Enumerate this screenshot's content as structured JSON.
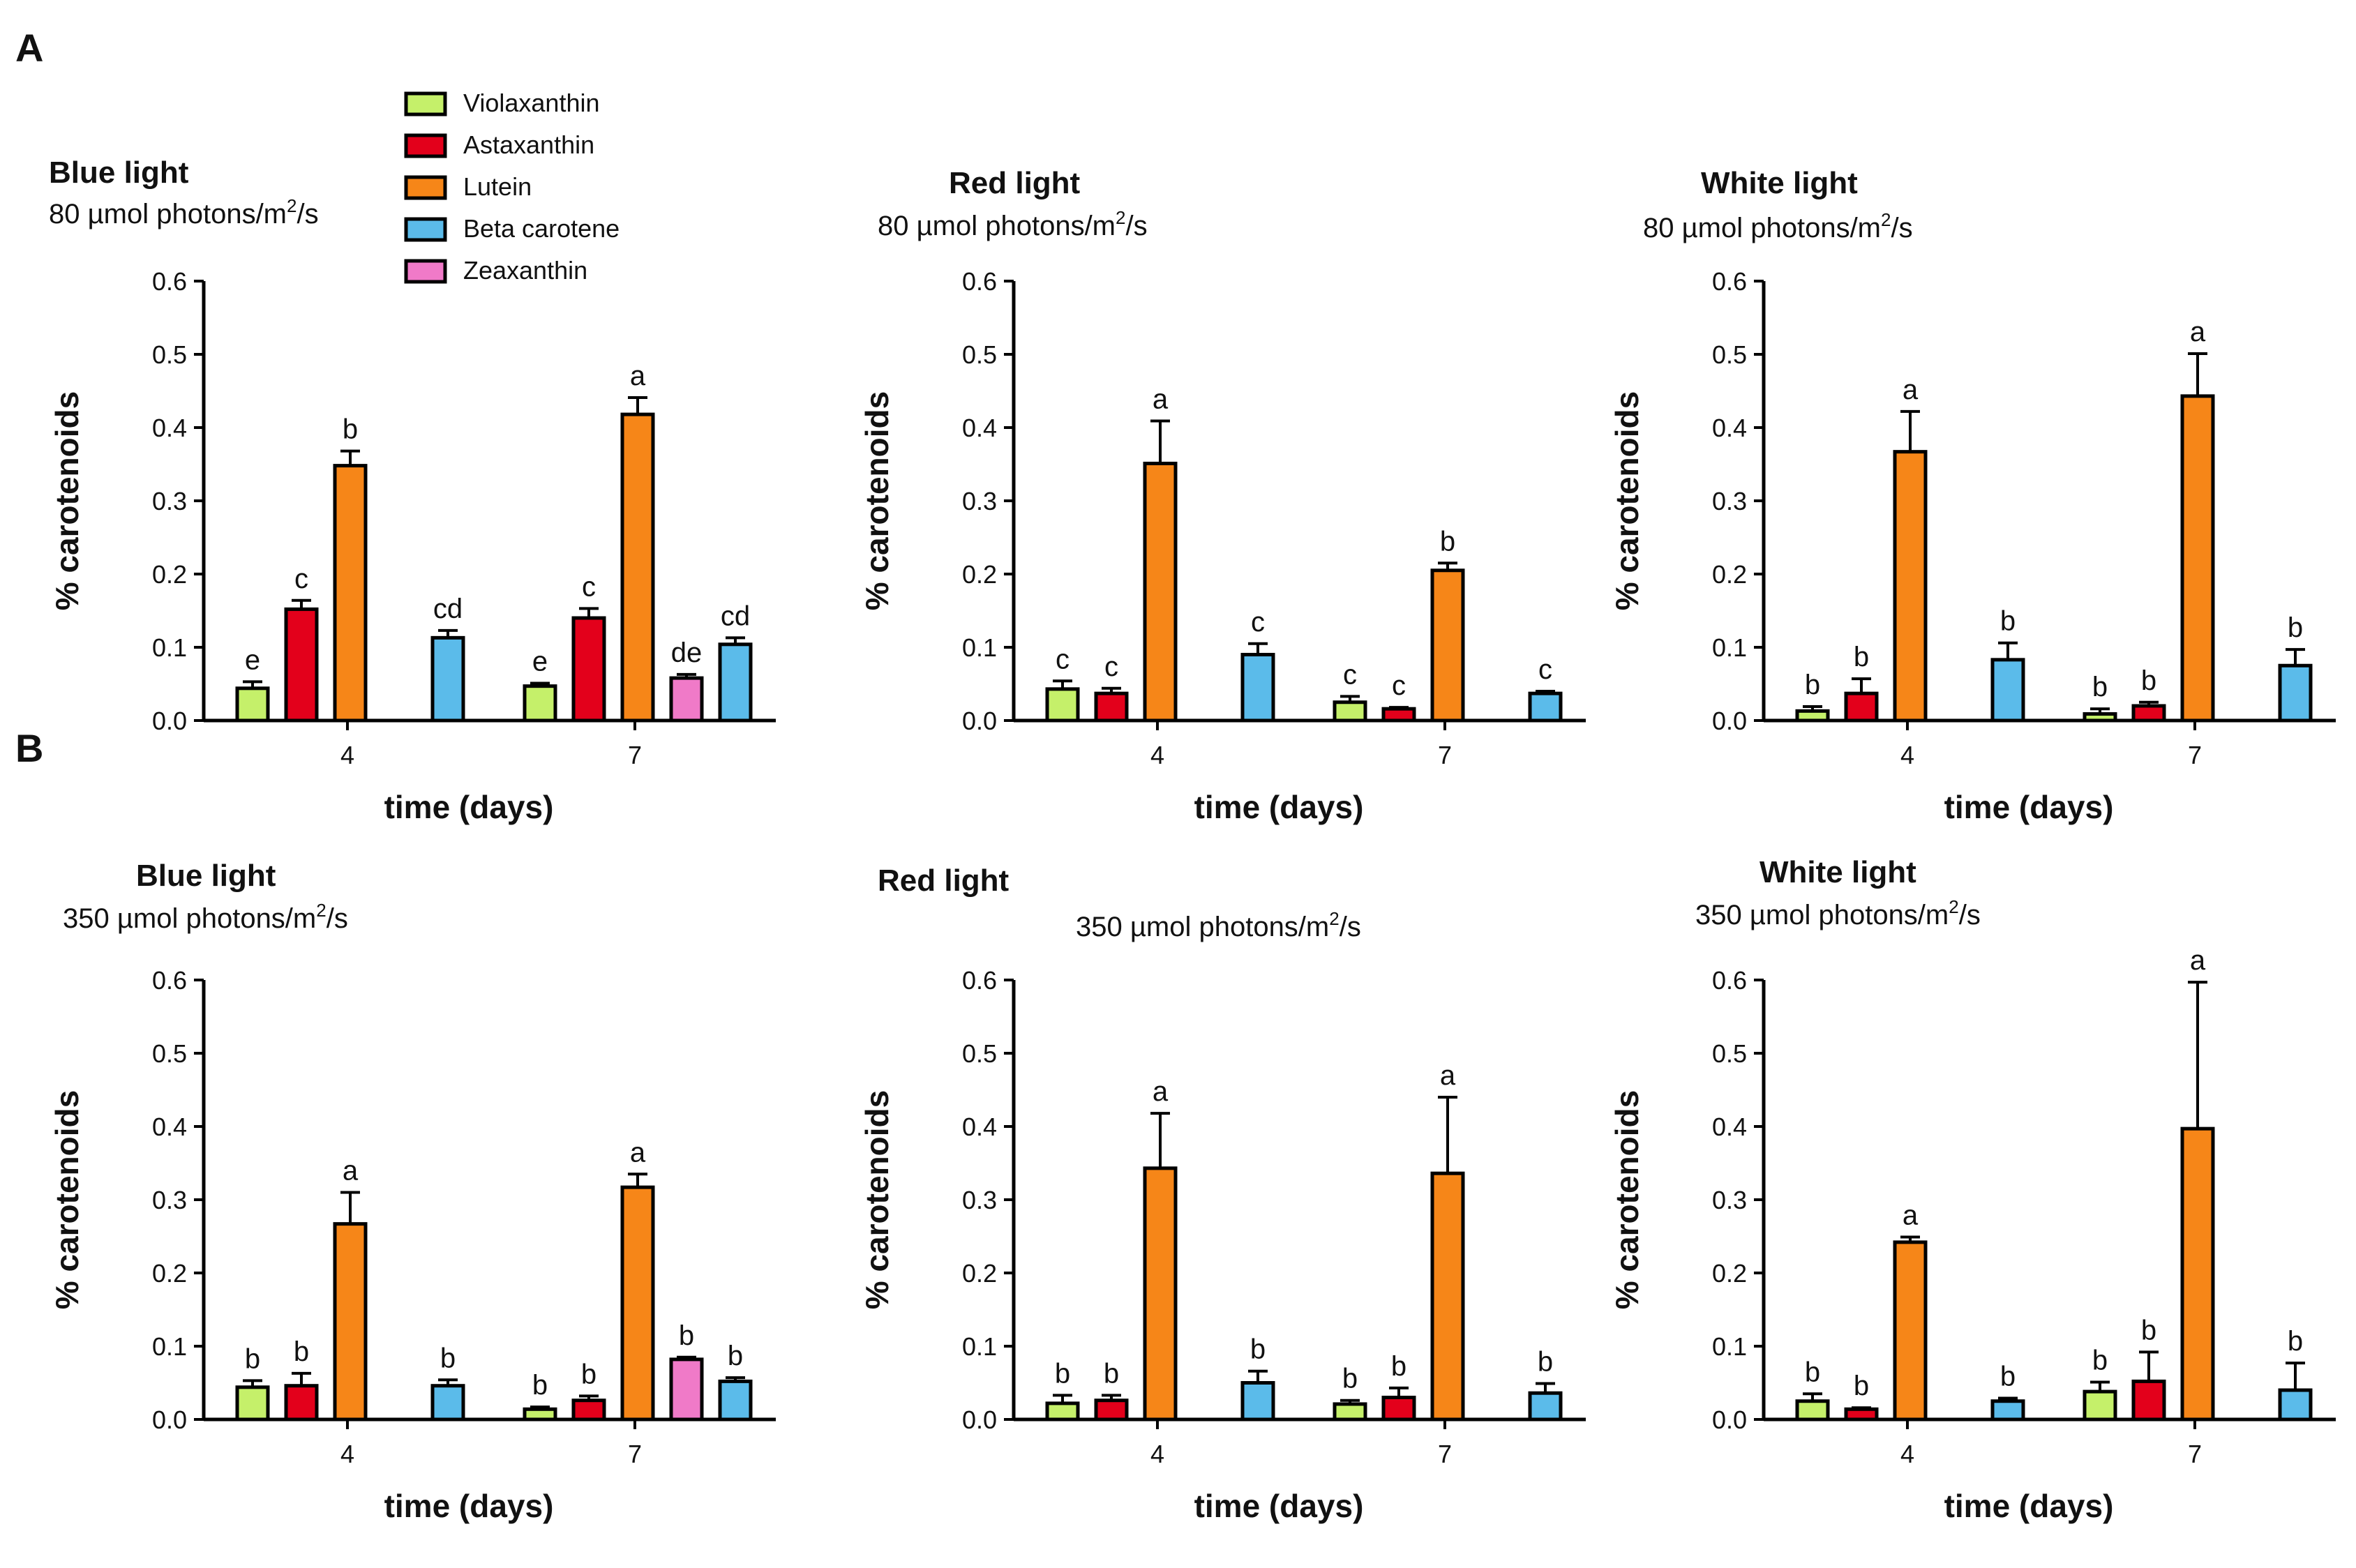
{
  "panel_labels": [
    "A",
    "B"
  ],
  "colors": {
    "Violaxanthin": "#c5f06a",
    "Astaxanthin": "#e3001b",
    "Lutein": "#f68618",
    "Beta carotene": "#5bbbea",
    "Zeaxanthin": "#f07ac8"
  },
  "legend": [
    "Violaxanthin",
    "Astaxanthin",
    "Lutein",
    "Beta carotene",
    "Zeaxanthin"
  ],
  "chart_data": [
    {
      "type": "bar",
      "panel": "A",
      "title": "Blue light",
      "subtitle": "80 µmol photons/m",
      "sup": "2",
      "subtitle_tail": "/s",
      "ylabel": "% carotenoids",
      "xlabel": "time (days)",
      "ylim": [
        0,
        0.6
      ],
      "yticks": [
        "0.0",
        "0.1",
        "0.2",
        "0.3",
        "0.4",
        "0.5",
        "0.6"
      ],
      "categories": [
        "4",
        "7"
      ],
      "series": [
        {
          "name": "Violaxanthin",
          "values": [
            0.044,
            0.047
          ],
          "errors": [
            0.009,
            0.004
          ],
          "labels": [
            "e",
            "e"
          ]
        },
        {
          "name": "Astaxanthin",
          "values": [
            0.152,
            0.14
          ],
          "errors": [
            0.012,
            0.013
          ],
          "labels": [
            "c",
            "c"
          ]
        },
        {
          "name": "Lutein",
          "values": [
            0.348,
            0.418
          ],
          "errors": [
            0.02,
            0.023
          ],
          "labels": [
            "b",
            "a"
          ]
        },
        {
          "name": "Zeaxanthin",
          "values": [
            0,
            0.058
          ],
          "errors": [
            0,
            0.005
          ],
          "labels": [
            "",
            "de"
          ]
        },
        {
          "name": "Beta carotene",
          "values": [
            0.113,
            0.104
          ],
          "errors": [
            0.01,
            0.009
          ],
          "labels": [
            "cd",
            "cd"
          ]
        }
      ]
    },
    {
      "type": "bar",
      "panel": "A",
      "title": "Red light",
      "subtitle": "80 µmol photons/m",
      "sup": "2",
      "subtitle_tail": "/s",
      "ylabel": "% carotenoids",
      "xlabel": "time (days)",
      "ylim": [
        0,
        0.6
      ],
      "yticks": [
        "0.0",
        "0.1",
        "0.2",
        "0.3",
        "0.4",
        "0.5",
        "0.6"
      ],
      "categories": [
        "4",
        "7"
      ],
      "series": [
        {
          "name": "Violaxanthin",
          "values": [
            0.043,
            0.025
          ],
          "errors": [
            0.011,
            0.008
          ],
          "labels": [
            "c",
            "c"
          ]
        },
        {
          "name": "Astaxanthin",
          "values": [
            0.037,
            0.016
          ],
          "errors": [
            0.007,
            0.002
          ],
          "labels": [
            "c",
            "c"
          ]
        },
        {
          "name": "Lutein",
          "values": [
            0.351,
            0.205
          ],
          "errors": [
            0.058,
            0.01
          ],
          "labels": [
            "a",
            "b"
          ]
        },
        {
          "name": "Zeaxanthin",
          "values": [
            0,
            0
          ],
          "errors": [
            0,
            0
          ],
          "labels": [
            "",
            ""
          ]
        },
        {
          "name": "Beta carotene",
          "values": [
            0.09,
            0.037
          ],
          "errors": [
            0.015,
            0.003
          ],
          "labels": [
            "c",
            "c"
          ]
        }
      ]
    },
    {
      "type": "bar",
      "panel": "A",
      "title": "White light",
      "subtitle": "80 µmol photons/m",
      "sup": "2",
      "subtitle_tail": "/s",
      "ylabel": "% carotenoids",
      "xlabel": "time (days)",
      "ylim": [
        0,
        0.6
      ],
      "yticks": [
        "0.0",
        "0.1",
        "0.2",
        "0.3",
        "0.4",
        "0.5",
        "0.6"
      ],
      "categories": [
        "4",
        "7"
      ],
      "series": [
        {
          "name": "Violaxanthin",
          "values": [
            0.013,
            0.009
          ],
          "errors": [
            0.006,
            0.007
          ],
          "labels": [
            "b",
            "b"
          ]
        },
        {
          "name": "Astaxanthin",
          "values": [
            0.037,
            0.02
          ],
          "errors": [
            0.02,
            0.005
          ],
          "labels": [
            "b",
            "b"
          ]
        },
        {
          "name": "Lutein",
          "values": [
            0.367,
            0.443
          ],
          "errors": [
            0.055,
            0.058
          ],
          "labels": [
            "a",
            "a"
          ]
        },
        {
          "name": "Zeaxanthin",
          "values": [
            0,
            0
          ],
          "errors": [
            0,
            0
          ],
          "labels": [
            "",
            ""
          ]
        },
        {
          "name": "Beta carotene",
          "values": [
            0.083,
            0.075
          ],
          "errors": [
            0.023,
            0.022
          ],
          "labels": [
            "b",
            "b"
          ]
        }
      ]
    },
    {
      "type": "bar",
      "panel": "B",
      "title": "Blue light",
      "subtitle": "350 µmol photons/m",
      "sup": "2",
      "subtitle_tail": "/s",
      "ylabel": "% carotenoids",
      "xlabel": "time (days)",
      "ylim": [
        0,
        0.6
      ],
      "yticks": [
        "0.0",
        "0.1",
        "0.2",
        "0.3",
        "0.4",
        "0.5",
        "0.6"
      ],
      "categories": [
        "4",
        "7"
      ],
      "series": [
        {
          "name": "Violaxanthin",
          "values": [
            0.044,
            0.014
          ],
          "errors": [
            0.009,
            0.003
          ],
          "labels": [
            "b",
            "b"
          ]
        },
        {
          "name": "Astaxanthin",
          "values": [
            0.046,
            0.026
          ],
          "errors": [
            0.017,
            0.006
          ],
          "labels": [
            "b",
            "b"
          ]
        },
        {
          "name": "Lutein",
          "values": [
            0.267,
            0.317
          ],
          "errors": [
            0.043,
            0.018
          ],
          "labels": [
            "a",
            "a"
          ]
        },
        {
          "name": "Zeaxanthin",
          "values": [
            0,
            0.082
          ],
          "errors": [
            0,
            0.003
          ],
          "labels": [
            "",
            "b"
          ]
        },
        {
          "name": "Beta carotene",
          "values": [
            0.046,
            0.052
          ],
          "errors": [
            0.008,
            0.005
          ],
          "labels": [
            "b",
            "b"
          ]
        }
      ]
    },
    {
      "type": "bar",
      "panel": "B",
      "title": "Red light",
      "subtitle": "350 µmol photons/m",
      "sup": "2",
      "subtitle_tail": "/s",
      "ylabel": "% carotenoids",
      "xlabel": "time (days)",
      "ylim": [
        0,
        0.6
      ],
      "yticks": [
        "0.0",
        "0.1",
        "0.2",
        "0.3",
        "0.4",
        "0.5",
        "0.6"
      ],
      "categories": [
        "4",
        "7"
      ],
      "series": [
        {
          "name": "Violaxanthin",
          "values": [
            0.022,
            0.021
          ],
          "errors": [
            0.011,
            0.005
          ],
          "labels": [
            "b",
            "b"
          ]
        },
        {
          "name": "Astaxanthin",
          "values": [
            0.026,
            0.03
          ],
          "errors": [
            0.007,
            0.013
          ],
          "labels": [
            "b",
            "b"
          ]
        },
        {
          "name": "Lutein",
          "values": [
            0.343,
            0.336
          ],
          "errors": [
            0.075,
            0.104
          ],
          "labels": [
            "a",
            "a"
          ]
        },
        {
          "name": "Zeaxanthin",
          "values": [
            0,
            0
          ],
          "errors": [
            0,
            0
          ],
          "labels": [
            "",
            ""
          ]
        },
        {
          "name": "Beta carotene",
          "values": [
            0.05,
            0.036
          ],
          "errors": [
            0.016,
            0.013
          ],
          "labels": [
            "b",
            "b"
          ]
        }
      ]
    },
    {
      "type": "bar",
      "panel": "B",
      "title": "White light",
      "subtitle": "350 µmol photons/m",
      "sup": "2",
      "subtitle_tail": "/s",
      "ylabel": "% carotenoids",
      "xlabel": "time (days)",
      "ylim": [
        0,
        0.6
      ],
      "yticks": [
        "0.0",
        "0.1",
        "0.2",
        "0.3",
        "0.4",
        "0.5",
        "0.6"
      ],
      "categories": [
        "4",
        "7"
      ],
      "series": [
        {
          "name": "Violaxanthin",
          "values": [
            0.025,
            0.038
          ],
          "errors": [
            0.01,
            0.013
          ],
          "labels": [
            "b",
            "b"
          ]
        },
        {
          "name": "Astaxanthin",
          "values": [
            0.014,
            0.052
          ],
          "errors": [
            0.002,
            0.04
          ],
          "labels": [
            "b",
            "b"
          ]
        },
        {
          "name": "Lutein",
          "values": [
            0.242,
            0.397
          ],
          "errors": [
            0.007,
            0.2
          ],
          "labels": [
            "a",
            "a"
          ]
        },
        {
          "name": "Zeaxanthin",
          "values": [
            0,
            0
          ],
          "errors": [
            0,
            0
          ],
          "labels": [
            "",
            ""
          ]
        },
        {
          "name": "Beta carotene",
          "values": [
            0.025,
            0.04
          ],
          "errors": [
            0.004,
            0.037
          ],
          "labels": [
            "b",
            "b"
          ]
        }
      ]
    }
  ]
}
